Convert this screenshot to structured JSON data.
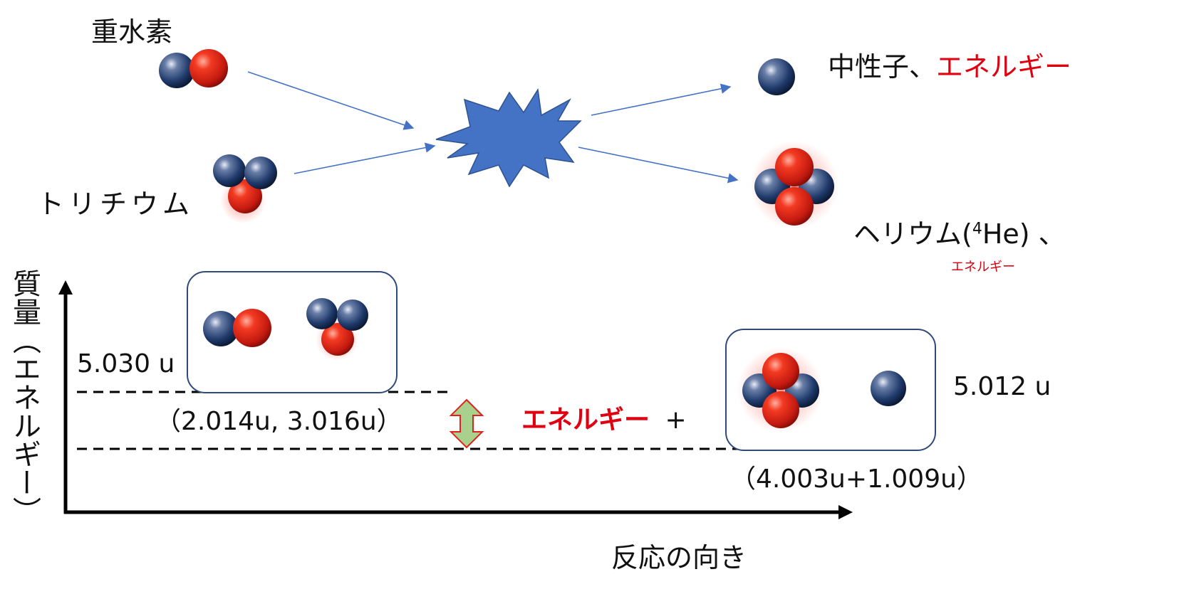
{
  "reactants": {
    "deuterium_label": "重水素",
    "tritium_label": "トリチウム"
  },
  "products": {
    "neutron_label": "中性子、",
    "neutron_energy": "エネルギー",
    "helium_label": "ヘリウム(",
    "helium_mass_number": "4",
    "helium_symbol": "He) 、",
    "helium_energy": "エネルギー"
  },
  "energy_diagram": {
    "y_axis_label": "質量（エネルギー）",
    "x_axis_label": "反応の向き",
    "reactant_mass": "5.030 u",
    "reactant_breakdown": "（2.014u, 3.016u）",
    "product_mass": "5.012 u",
    "product_breakdown": "（4.003u+1.009u）",
    "energy_label": "エネルギー",
    "plus_sign": "+"
  },
  "colors": {
    "proton": "#e0231c",
    "neutron": "#1f3a6b",
    "arrow": "#4472c4",
    "burst": "#4472c4",
    "energy_text": "#e0000f",
    "energy_arrow_fill": "#a9d18e",
    "energy_arrow_stroke": "#e0231c"
  }
}
